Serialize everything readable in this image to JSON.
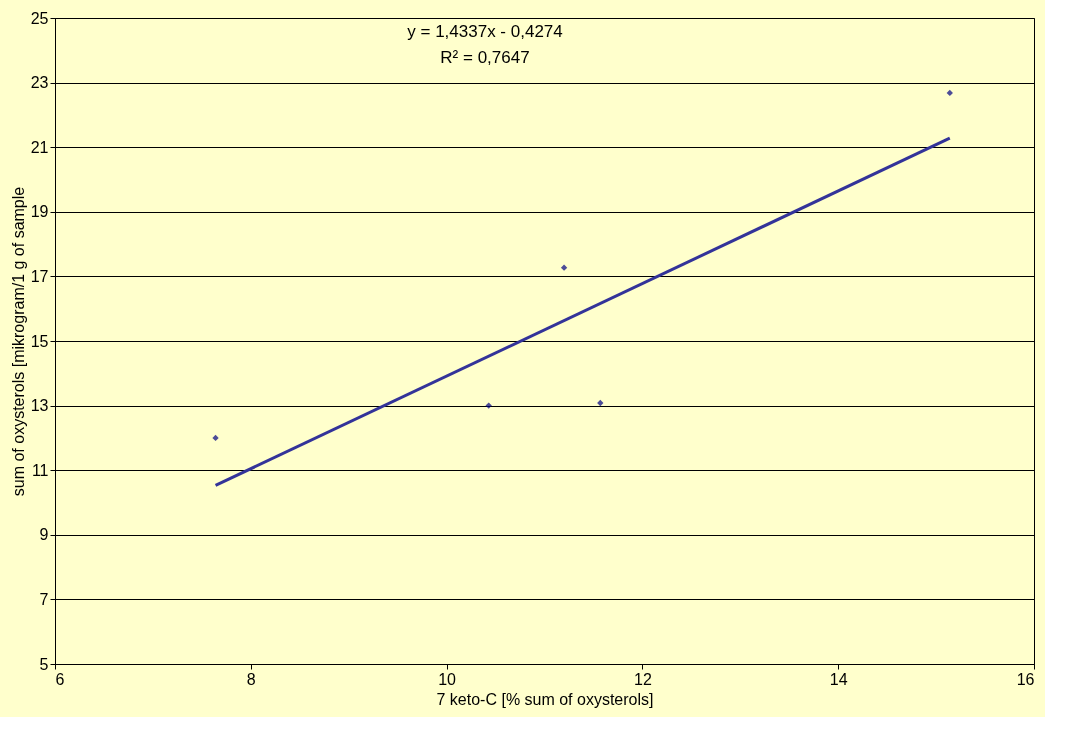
{
  "chart_data": {
    "type": "scatter",
    "xlabel": "7 keto-C [% sum of oxysterols]",
    "ylabel": "sum of oxysterols [mikrogram/1 g of sample",
    "xlim": [
      6,
      16
    ],
    "xticks": [
      6,
      8,
      10,
      12,
      14,
      16
    ],
    "ylim": [
      5,
      25
    ],
    "yticks": [
      5,
      7,
      9,
      11,
      13,
      15,
      17,
      19,
      21,
      23,
      25
    ],
    "grid": "y",
    "marker": "diamond",
    "annotations": [
      "y = 1,4337x - 0,4274",
      "R² = 0,7647"
    ],
    "series": [
      {
        "color": "#000080",
        "x": [
          7.64,
          10.43,
          11.2,
          11.57,
          15.14
        ],
        "values": [
          12.0,
          13.0,
          17.27,
          13.08,
          22.68
        ]
      },
      {
        "type": "line",
        "marker": "none",
        "color": "#333399",
        "x": [
          7.64,
          15.14
        ],
        "values": [
          10.53,
          21.28
        ]
      }
    ]
  }
}
